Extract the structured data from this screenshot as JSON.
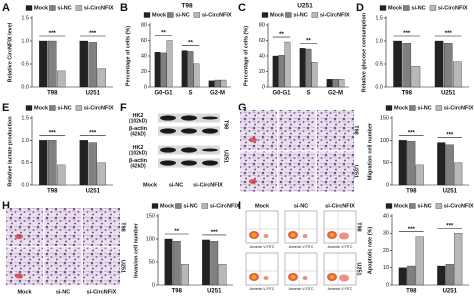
{
  "panel_letters": [
    "A",
    "B",
    "C",
    "D",
    "E",
    "F",
    "G",
    "H",
    "I"
  ],
  "chart_data": [
    {
      "type": "bar",
      "ylabel": "Relative CircNFIX level",
      "categories": [
        "T98",
        "U251"
      ],
      "series": [
        {
          "name": "Mock",
          "color": "#222222",
          "values": [
            1.0,
            1.0
          ]
        },
        {
          "name": "si-NC",
          "color": "#808080",
          "values": [
            1.0,
            0.97
          ]
        },
        {
          "name": "si-CircNFIX",
          "color": "#b8b8b8",
          "values": [
            0.35,
            0.4
          ]
        }
      ],
      "ylim": [
        0,
        1.5
      ],
      "yticks": [
        {
          "value": 0,
          "label": "0.0"
        },
        0.5,
        {
          "value": 1,
          "label": "1.0"
        },
        1.5
      ],
      "significance": [
        "***",
        "***"
      ]
    },
    {
      "type": "bar",
      "title": "T98",
      "ylabel": "Percentage of cells (%)",
      "categories": [
        "G0-G1",
        "S",
        "G2-M"
      ],
      "series": [
        {
          "name": "Mock",
          "color": "#222222",
          "values": [
            45,
            47,
            8
          ]
        },
        {
          "name": "si-NC",
          "color": "#808080",
          "values": [
            44,
            46,
            9
          ]
        },
        {
          "name": "si-CircNFIX",
          "color": "#b8b8b8",
          "values": [
            60,
            30,
            9
          ]
        }
      ],
      "ylim": [
        0,
        80
      ],
      "yticks": [
        0,
        20,
        40,
        60,
        80
      ],
      "significance": [
        "**",
        "**",
        null
      ]
    },
    {
      "type": "bar",
      "title": "U251",
      "ylabel": "Percentage of cells (%)",
      "categories": [
        "G0-G1",
        "S",
        "G2-M"
      ],
      "series": [
        {
          "name": "Mock",
          "color": "#222222",
          "values": [
            40,
            50,
            10
          ]
        },
        {
          "name": "si-NC",
          "color": "#808080",
          "values": [
            41,
            49,
            10
          ]
        },
        {
          "name": "si-CircNFIX",
          "color": "#b8b8b8",
          "values": [
            58,
            32,
            10
          ]
        }
      ],
      "ylim": [
        0,
        80
      ],
      "yticks": [
        0,
        20,
        40,
        60,
        80
      ],
      "significance": [
        "**",
        "**",
        null
      ]
    },
    {
      "type": "bar",
      "ylabel": "Relative glucose consumption",
      "categories": [
        "T98",
        "U251"
      ],
      "series": [
        {
          "name": "Mock",
          "color": "#222222",
          "values": [
            1.0,
            1.0
          ]
        },
        {
          "name": "si-NC",
          "color": "#808080",
          "values": [
            0.95,
            0.95
          ]
        },
        {
          "name": "si-CircNFIX",
          "color": "#b8b8b8",
          "values": [
            0.45,
            0.55
          ]
        }
      ],
      "ylim": [
        0,
        1.5
      ],
      "yticks": [
        {
          "value": 0,
          "label": "0.0"
        },
        0.5,
        {
          "value": 1,
          "label": "1.0"
        },
        1.5
      ],
      "significance": [
        "***",
        "***"
      ]
    },
    {
      "type": "bar",
      "ylabel": "Relative lactate production",
      "categories": [
        "T98",
        "U251"
      ],
      "series": [
        {
          "name": "Mock",
          "color": "#222222",
          "values": [
            1.0,
            1.0
          ]
        },
        {
          "name": "si-NC",
          "color": "#808080",
          "values": [
            1.0,
            0.95
          ]
        },
        {
          "name": "si-CircNFIX",
          "color": "#b8b8b8",
          "values": [
            0.45,
            0.5
          ]
        }
      ],
      "ylim": [
        0,
        1.5
      ],
      "yticks": [
        {
          "value": 0,
          "label": "0.0"
        },
        0.5,
        {
          "value": 1,
          "label": "1.0"
        },
        1.5
      ],
      "significance": [
        "***",
        "***"
      ]
    },
    {
      "type": "bar",
      "ylabel": "Migration cell number",
      "categories": [
        "T98",
        "U251"
      ],
      "series": [
        {
          "name": "Mock",
          "color": "#222222",
          "values": [
            100,
            95
          ]
        },
        {
          "name": "si-NC",
          "color": "#808080",
          "values": [
            98,
            90
          ]
        },
        {
          "name": "si-CircNFIX",
          "color": "#b8b8b8",
          "values": [
            45,
            50
          ]
        }
      ],
      "ylim": [
        0,
        150
      ],
      "yticks": [
        0,
        50,
        100,
        150
      ],
      "significance": [
        "***",
        "***"
      ]
    },
    {
      "type": "bar",
      "ylabel": "Invasion cell number",
      "categories": [
        "T98",
        "U251"
      ],
      "series": [
        {
          "name": "Mock",
          "color": "#222222",
          "values": [
            100,
            98
          ]
        },
        {
          "name": "si-NC",
          "color": "#808080",
          "values": [
            95,
            95
          ]
        },
        {
          "name": "si-CircNFIX",
          "color": "#b8b8b8",
          "values": [
            45,
            45
          ]
        }
      ],
      "ylim": [
        0,
        150
      ],
      "yticks": [
        0,
        50,
        100,
        150
      ],
      "significance": [
        "**",
        "***"
      ]
    },
    {
      "type": "bar",
      "ylabel": "Apoptotic rate (%)",
      "categories": [
        "T98",
        "U251"
      ],
      "series": [
        {
          "name": "Mock",
          "color": "#222222",
          "values": [
            10,
            11
          ]
        },
        {
          "name": "si-NC",
          "color": "#808080",
          "values": [
            11,
            12
          ]
        },
        {
          "name": "si-CircNFIX",
          "color": "#b8b8b8",
          "values": [
            28,
            30
          ]
        }
      ],
      "ylim": [
        0,
        40
      ],
      "yticks": [
        0,
        10,
        20,
        30,
        40
      ],
      "significance": [
        "***",
        "***"
      ]
    }
  ],
  "blot": {
    "bands": [
      {
        "name": "HK2",
        "size": "(102kD)"
      },
      {
        "name": "β-actin",
        "size": "(42kD)"
      },
      {
        "name": "HK2",
        "size": "(102kD)"
      },
      {
        "name": "β-actin",
        "size": "(42kD)"
      }
    ],
    "cell_lines": [
      "T98",
      "U251"
    ],
    "lanes": [
      "Mock",
      "si-NC",
      "si-CircNFIX"
    ]
  },
  "migration": {
    "rows": [
      "T98",
      "U251"
    ]
  },
  "invasion": {
    "rows": [
      "T98",
      "U251"
    ],
    "columns": [
      "Mock",
      "si-NC",
      "si-CircNFIX"
    ]
  },
  "apoptosis": {
    "columns": [
      "Mock",
      "si-NC",
      "si-CircNFIX"
    ],
    "axis_label": "Annexin V-FITC",
    "rows": [
      "T98",
      "U251"
    ]
  }
}
